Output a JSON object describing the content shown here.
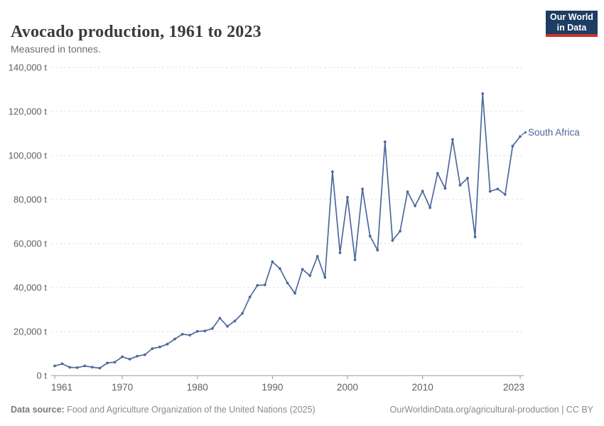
{
  "header": {
    "title": "Avocado production, 1961 to 2023",
    "subtitle": "Measured in tonnes.",
    "logo": {
      "line1": "Our World",
      "line2": "in Data"
    }
  },
  "colors": {
    "series_blue": "#4c6a9c",
    "grid": "#e0e0e0",
    "axis": "#9a9a9a",
    "tick_label": "#5f5f5f",
    "logo_bg": "#1d3d63",
    "logo_accent": "#cb342b"
  },
  "chart_data": {
    "type": "line",
    "title": "Avocado production, 1961 to 2023",
    "subtitle": "Measured in tonnes.",
    "unit": "t",
    "xlabel": "",
    "ylabel": "",
    "xlim": [
      1961,
      2023
    ],
    "ylim": [
      0,
      140000
    ],
    "x_ticks": [
      1961,
      1970,
      1980,
      1990,
      2000,
      2010,
      2023
    ],
    "y_ticks": [
      0,
      20000,
      40000,
      60000,
      80000,
      100000,
      120000,
      140000
    ],
    "grid": "horizontal-dashed",
    "legend_position": "end-of-line-label",
    "series": [
      {
        "name": "South Africa",
        "color": "#4c6a9c",
        "x": [
          1961,
          1962,
          1963,
          1964,
          1965,
          1966,
          1967,
          1968,
          1969,
          1970,
          1971,
          1972,
          1973,
          1974,
          1975,
          1976,
          1977,
          1978,
          1979,
          1980,
          1981,
          1982,
          1983,
          1984,
          1985,
          1986,
          1987,
          1988,
          1989,
          1990,
          1991,
          1992,
          1993,
          1994,
          1995,
          1996,
          1997,
          1998,
          1999,
          2000,
          2001,
          2002,
          2003,
          2004,
          2005,
          2006,
          2007,
          2008,
          2009,
          2010,
          2011,
          2012,
          2013,
          2014,
          2015,
          2016,
          2017,
          2018,
          2019,
          2020,
          2021,
          2022,
          2023
        ],
        "values": [
          4400,
          5350,
          3750,
          3600,
          4400,
          3850,
          3400,
          5750,
          6100,
          8550,
          7450,
          8850,
          9500,
          12250,
          13000,
          14300,
          16600,
          18800,
          18400,
          20100,
          20300,
          21400,
          26100,
          22400,
          24800,
          28300,
          35700,
          41000,
          41200,
          51700,
          48600,
          42100,
          37400,
          48300,
          45400,
          54200,
          44600,
          92600,
          55800,
          81000,
          52600,
          84800,
          63400,
          57000,
          106200,
          61400,
          65600,
          83500,
          77100,
          83800,
          76300,
          91900,
          85100,
          107300,
          86500,
          89700,
          63000,
          128100,
          83700,
          84800,
          82300,
          104300,
          108600
        ]
      }
    ]
  },
  "footer": {
    "source_label": "Data source:",
    "source_text": " Food and Agriculture Organization of the United Nations (2025)",
    "link_text": "OurWorldinData.org/agricultural-production | CC BY"
  }
}
